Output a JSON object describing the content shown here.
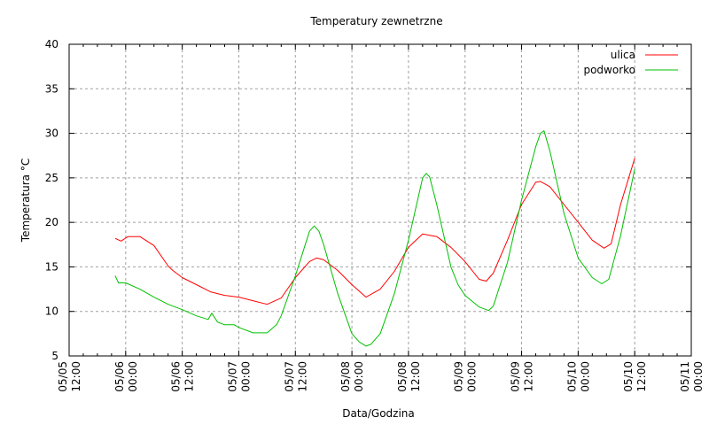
{
  "chart_data": {
    "type": "line",
    "title": "Temperatury zewnetrzne",
    "xlabel": "Data/Godzina",
    "ylabel": "Temperatura °C",
    "ylim": [
      5,
      40
    ],
    "yticks": [
      5,
      10,
      15,
      20,
      25,
      30,
      35,
      40
    ],
    "xlim": [
      "05/05 12:00",
      "05/11 00:00"
    ],
    "xticks": [
      [
        "05/05",
        "12:00"
      ],
      [
        "05/06",
        "00:00"
      ],
      [
        "05/06",
        "12:00"
      ],
      [
        "05/07",
        "00:00"
      ],
      [
        "05/07",
        "12:00"
      ],
      [
        "05/08",
        "00:00"
      ],
      [
        "05/08",
        "12:00"
      ],
      [
        "05/09",
        "00:00"
      ],
      [
        "05/09",
        "12:00"
      ],
      [
        "05/10",
        "00:00"
      ],
      [
        "05/10",
        "12:00"
      ],
      [
        "05/11",
        "00:00"
      ]
    ],
    "grid": true,
    "legend_position": "top-right",
    "series": [
      {
        "name": "ulica",
        "color": "#ff0000",
        "points": [
          [
            "05/05 21:45",
            18.2
          ],
          [
            "05/05 23:00",
            17.9
          ],
          [
            "05/06 00:30",
            18.4
          ],
          [
            "05/06 03:00",
            18.4
          ],
          [
            "05/06 06:00",
            17.4
          ],
          [
            "05/06 09:00",
            15.1
          ],
          [
            "05/06 10:00",
            14.6
          ],
          [
            "05/06 12:00",
            13.8
          ],
          [
            "05/06 15:00",
            13.0
          ],
          [
            "05/06 18:00",
            12.2
          ],
          [
            "05/06 21:00",
            11.8
          ],
          [
            "05/07 00:00",
            11.6
          ],
          [
            "05/07 03:00",
            11.2
          ],
          [
            "05/07 06:00",
            10.8
          ],
          [
            "05/07 09:00",
            11.5
          ],
          [
            "05/07 12:00",
            13.8
          ],
          [
            "05/07 15:00",
            15.6
          ],
          [
            "05/07 16:30",
            16.0
          ],
          [
            "05/07 18:00",
            15.8
          ],
          [
            "05/07 21:00",
            14.6
          ],
          [
            "05/08 00:00",
            13.0
          ],
          [
            "05/08 03:00",
            11.6
          ],
          [
            "05/08 06:00",
            12.5
          ],
          [
            "05/08 09:00",
            14.5
          ],
          [
            "05/08 12:00",
            17.2
          ],
          [
            "05/08 15:00",
            18.7
          ],
          [
            "05/08 18:00",
            18.4
          ],
          [
            "05/08 21:00",
            17.2
          ],
          [
            "05/09 00:00",
            15.6
          ],
          [
            "05/09 03:00",
            13.6
          ],
          [
            "05/09 04:30",
            13.4
          ],
          [
            "05/09 06:00",
            14.3
          ],
          [
            "05/09 09:00",
            18.0
          ],
          [
            "05/09 12:00",
            22.0
          ],
          [
            "05/09 15:00",
            24.5
          ],
          [
            "05/09 16:00",
            24.6
          ],
          [
            "05/09 18:00",
            24.0
          ],
          [
            "05/09 21:00",
            22.0
          ],
          [
            "05/10 00:00",
            20.0
          ],
          [
            "05/10 03:00",
            18.0
          ],
          [
            "05/10 05:30",
            17.1
          ],
          [
            "05/10 07:00",
            17.6
          ],
          [
            "05/10 09:00",
            22.0
          ],
          [
            "05/10 12:00",
            27.2
          ]
        ]
      },
      {
        "name": "podworko",
        "color": "#00c000",
        "points": [
          [
            "05/05 21:45",
            14.0
          ],
          [
            "05/05 22:30",
            13.2
          ],
          [
            "05/06 00:00",
            13.2
          ],
          [
            "05/06 03:00",
            12.5
          ],
          [
            "05/06 06:00",
            11.6
          ],
          [
            "05/06 09:00",
            10.8
          ],
          [
            "05/06 12:00",
            10.2
          ],
          [
            "05/06 15:00",
            9.5
          ],
          [
            "05/06 17:30",
            9.1
          ],
          [
            "05/06 18:15",
            9.8
          ],
          [
            "05/06 19:30",
            8.8
          ],
          [
            "05/06 21:00",
            8.5
          ],
          [
            "05/06 23:00",
            8.5
          ],
          [
            "05/07 00:00",
            8.2
          ],
          [
            "05/07 03:00",
            7.6
          ],
          [
            "05/07 06:00",
            7.6
          ],
          [
            "05/07 08:00",
            8.5
          ],
          [
            "05/07 09:00",
            9.5
          ],
          [
            "05/07 12:00",
            14.0
          ],
          [
            "05/07 15:00",
            19.0
          ],
          [
            "05/07 16:00",
            19.6
          ],
          [
            "05/07 17:00",
            19.0
          ],
          [
            "05/07 18:00",
            17.5
          ],
          [
            "05/07 21:00",
            12.0
          ],
          [
            "05/08 00:00",
            7.5
          ],
          [
            "05/08 01:30",
            6.6
          ],
          [
            "05/08 03:00",
            6.1
          ],
          [
            "05/08 04:00",
            6.3
          ],
          [
            "05/08 06:00",
            7.5
          ],
          [
            "05/08 09:00",
            12.0
          ],
          [
            "05/08 12:00",
            18.0
          ],
          [
            "05/08 15:00",
            25.0
          ],
          [
            "05/08 15:45",
            25.5
          ],
          [
            "05/08 16:30",
            25.1
          ],
          [
            "05/08 18:00",
            22.0
          ],
          [
            "05/08 21:00",
            15.0
          ],
          [
            "05/08 22:30",
            13.0
          ],
          [
            "05/09 00:00",
            11.8
          ],
          [
            "05/09 03:00",
            10.5
          ],
          [
            "05/09 05:00",
            10.1
          ],
          [
            "05/09 06:00",
            10.6
          ],
          [
            "05/09 09:00",
            15.5
          ],
          [
            "05/09 12:00",
            22.5
          ],
          [
            "05/09 15:00",
            28.5
          ],
          [
            "05/09 16:00",
            30.0
          ],
          [
            "05/09 16:45",
            30.3
          ],
          [
            "05/09 18:00",
            28.0
          ],
          [
            "05/09 21:00",
            21.0
          ],
          [
            "05/10 00:00",
            16.0
          ],
          [
            "05/10 03:00",
            13.8
          ],
          [
            "05/10 05:00",
            13.1
          ],
          [
            "05/10 06:30",
            13.6
          ],
          [
            "05/10 09:00",
            18.5
          ],
          [
            "05/10 11:00",
            23.5
          ],
          [
            "05/10 12:00",
            26.0
          ]
        ]
      }
    ]
  }
}
